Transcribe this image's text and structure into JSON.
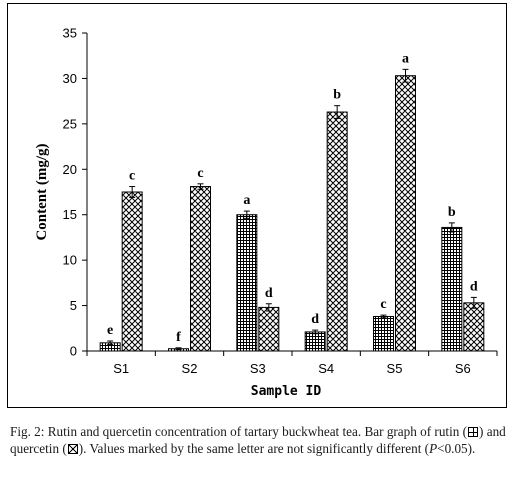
{
  "chart_data": {
    "type": "bar",
    "categories": [
      "S1",
      "S2",
      "S3",
      "S4",
      "S5",
      "S6"
    ],
    "series": [
      {
        "name": "rutin",
        "values": [
          0.9,
          0.25,
          15.0,
          2.1,
          3.8,
          13.6
        ],
        "errors": [
          0.2,
          0.1,
          0.4,
          0.2,
          0.15,
          0.5
        ],
        "letters": [
          "e",
          "f",
          "a",
          "d",
          "c",
          "b"
        ],
        "pattern": "grid"
      },
      {
        "name": "quercetin",
        "values": [
          17.5,
          18.1,
          4.8,
          26.3,
          30.3,
          5.3
        ],
        "errors": [
          0.6,
          0.3,
          0.4,
          0.7,
          0.7,
          0.6
        ],
        "letters": [
          "c",
          "c",
          "d",
          "b",
          "a",
          "d"
        ],
        "pattern": "crosshatch"
      }
    ],
    "xlabel": "Sample ID",
    "ylabel": "Content (mg/g)",
    "ylim": [
      0,
      35
    ],
    "yticks": [
      0,
      5,
      10,
      15,
      20,
      25,
      30,
      35
    ],
    "grid": false,
    "legend": "none"
  },
  "caption": {
    "part1": "Fig. 2: Rutin and quercetin concentration of tartary buckwheat tea. Bar graph of rutin (",
    "part2": ") and quercetin (",
    "part3": "). Values marked by the same letter are not significantly different (",
    "p_italic": "P",
    "part4": "<0.05)."
  },
  "colors": {
    "bar_fill": "#ffffff",
    "pattern_stroke": "#000000",
    "axis": "#000000"
  }
}
